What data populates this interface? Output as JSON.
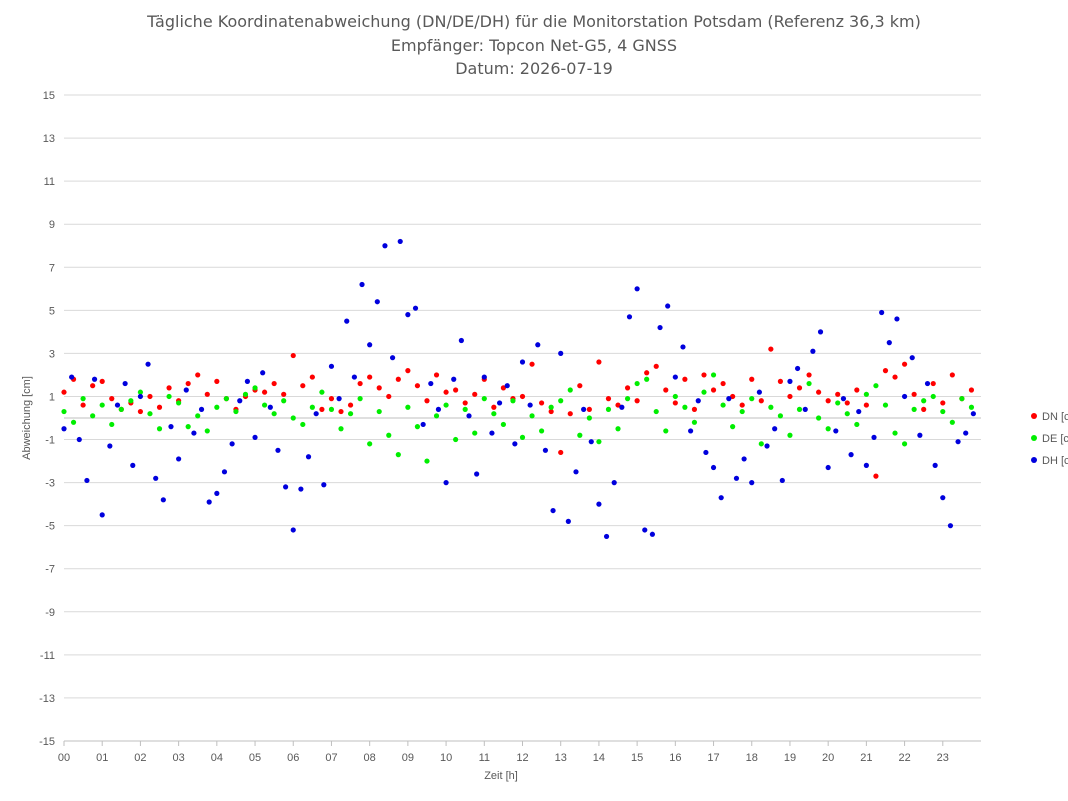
{
  "chart_data": {
    "type": "scatter",
    "title_lines": [
      "Tägliche Koordinatenabweichung (DN/DE/DH) für die Monitorstation Potsdam (Referenz 36,3 km)",
      "Empfänger: Topcon Net-G5, 4 GNSS",
      "Datum: 2026-07-19"
    ],
    "xlabel": "Zeit [h]",
    "ylabel": "Abweichung [cm]",
    "xlim": [
      0,
      24
    ],
    "ylim": [
      -15,
      15
    ],
    "x_tick_labels": [
      "00",
      "01",
      "02",
      "03",
      "04",
      "05",
      "06",
      "07",
      "08",
      "09",
      "10",
      "11",
      "12",
      "13",
      "14",
      "15",
      "16",
      "17",
      "18",
      "19",
      "20",
      "21",
      "22",
      "23"
    ],
    "y_tick_labels": [
      "15",
      "13",
      "11",
      "9",
      "7",
      "5",
      "3",
      "1",
      "-1",
      "-3",
      "-5",
      "-7",
      "-9",
      "-11",
      "-13",
      "-15"
    ],
    "grid": "horizontal",
    "legend_position": "right",
    "series": [
      {
        "name": "DN [cm]",
        "color": "#ff0000",
        "x": [
          0.0,
          0.25,
          0.5,
          0.75,
          1.0,
          1.25,
          1.5,
          1.75,
          2.0,
          2.25,
          2.5,
          2.75,
          3.0,
          3.25,
          3.5,
          3.75,
          4.0,
          4.25,
          4.5,
          4.75,
          5.0,
          5.25,
          5.5,
          5.75,
          6.0,
          6.25,
          6.5,
          6.75,
          7.0,
          7.25,
          7.5,
          7.75,
          8.0,
          8.25,
          8.5,
          8.75,
          9.0,
          9.25,
          9.5,
          9.75,
          10.0,
          10.25,
          10.5,
          10.75,
          11.0,
          11.25,
          11.5,
          11.75,
          12.0,
          12.25,
          12.5,
          12.75,
          13.0,
          13.25,
          13.5,
          13.75,
          14.0,
          14.25,
          14.5,
          14.75,
          15.0,
          15.25,
          15.5,
          15.75,
          16.0,
          16.25,
          16.5,
          16.75,
          17.0,
          17.25,
          17.5,
          17.75,
          18.0,
          18.25,
          18.5,
          18.75,
          19.0,
          19.25,
          19.5,
          19.75,
          20.0,
          20.25,
          20.5,
          20.75,
          21.0,
          21.25,
          21.5,
          21.75,
          22.0,
          22.25,
          22.5,
          22.75,
          23.0,
          23.25,
          23.5,
          23.75
        ],
        "values": [
          1.2,
          1.8,
          0.6,
          1.5,
          1.7,
          0.9,
          0.4,
          0.7,
          0.3,
          1.0,
          0.5,
          1.4,
          0.8,
          1.6,
          2.0,
          1.1,
          1.7,
          0.9,
          0.4,
          1.0,
          1.3,
          1.2,
          1.6,
          1.1,
          2.9,
          1.5,
          1.9,
          0.4,
          0.9,
          0.3,
          0.6,
          1.6,
          1.9,
          1.4,
          1.0,
          1.8,
          2.2,
          1.5,
          0.8,
          2.0,
          1.2,
          1.3,
          0.7,
          1.1,
          1.8,
          0.5,
          1.4,
          0.9,
          1.0,
          2.5,
          0.7,
          0.3,
          -1.6,
          0.2,
          1.5,
          0.4,
          2.6,
          0.9,
          0.6,
          1.4,
          0.8,
          2.1,
          2.4,
          1.3,
          0.7,
          1.8,
          0.4,
          2.0,
          1.3,
          1.6,
          1.0,
          0.6,
          1.8,
          0.8,
          3.2,
          1.7,
          1.0,
          1.4,
          2.0,
          1.2,
          0.8,
          1.1,
          0.7,
          1.3,
          0.6,
          -2.7,
          2.2,
          1.9,
          2.5,
          1.1,
          0.4,
          1.6,
          0.7,
          2.0,
          0.9,
          1.3
        ]
      },
      {
        "name": "DE [cm]",
        "color": "#00ee00",
        "x": [
          0.0,
          0.25,
          0.5,
          0.75,
          1.0,
          1.25,
          1.5,
          1.75,
          2.0,
          2.25,
          2.5,
          2.75,
          3.0,
          3.25,
          3.5,
          3.75,
          4.0,
          4.25,
          4.5,
          4.75,
          5.0,
          5.25,
          5.5,
          5.75,
          6.0,
          6.25,
          6.5,
          6.75,
          7.0,
          7.25,
          7.5,
          7.75,
          8.0,
          8.25,
          8.5,
          8.75,
          9.0,
          9.25,
          9.5,
          9.75,
          10.0,
          10.25,
          10.5,
          10.75,
          11.0,
          11.25,
          11.5,
          11.75,
          12.0,
          12.25,
          12.5,
          12.75,
          13.0,
          13.25,
          13.5,
          13.75,
          14.0,
          14.25,
          14.5,
          14.75,
          15.0,
          15.25,
          15.5,
          15.75,
          16.0,
          16.25,
          16.5,
          16.75,
          17.0,
          17.25,
          17.5,
          17.75,
          18.0,
          18.25,
          18.5,
          18.75,
          19.0,
          19.25,
          19.5,
          19.75,
          20.0,
          20.25,
          20.5,
          20.75,
          21.0,
          21.25,
          21.5,
          21.75,
          22.0,
          22.25,
          22.5,
          22.75,
          23.0,
          23.25,
          23.5,
          23.75
        ],
        "values": [
          0.3,
          -0.2,
          0.9,
          0.1,
          0.6,
          -0.3,
          0.4,
          0.8,
          1.2,
          0.2,
          -0.5,
          1.0,
          0.7,
          -0.4,
          0.1,
          -0.6,
          0.5,
          0.9,
          0.3,
          1.1,
          1.4,
          0.6,
          0.2,
          0.8,
          0.0,
          -0.3,
          0.5,
          1.2,
          0.4,
          -0.5,
          0.2,
          0.9,
          -1.2,
          0.3,
          -0.8,
          -1.7,
          0.5,
          -0.4,
          -2.0,
          0.1,
          0.6,
          -1.0,
          0.4,
          -0.7,
          0.9,
          0.2,
          -0.3,
          0.8,
          -0.9,
          0.1,
          -0.6,
          0.5,
          0.8,
          1.3,
          -0.8,
          0.0,
          -1.1,
          0.4,
          -0.5,
          0.9,
          1.6,
          1.8,
          0.3,
          -0.6,
          1.0,
          0.5,
          -0.2,
          1.2,
          2.0,
          0.6,
          -0.4,
          0.3,
          0.9,
          -1.2,
          0.5,
          0.1,
          -0.8,
          0.4,
          1.6,
          0.0,
          -0.5,
          0.7,
          0.2,
          -0.3,
          1.1,
          1.5,
          0.6,
          -0.7,
          -1.2,
          0.4,
          0.8,
          1.0,
          0.3,
          -0.2,
          0.9,
          0.5
        ]
      },
      {
        "name": "DH [cm]",
        "color": "#0000dd",
        "x": [
          0.0,
          0.2,
          0.4,
          0.6,
          0.8,
          1.0,
          1.2,
          1.4,
          1.6,
          1.8,
          2.0,
          2.2,
          2.4,
          2.6,
          2.8,
          3.0,
          3.2,
          3.4,
          3.6,
          3.8,
          4.0,
          4.2,
          4.4,
          4.6,
          4.8,
          5.0,
          5.2,
          5.4,
          5.6,
          5.8,
          6.0,
          6.2,
          6.4,
          6.6,
          6.8,
          7.0,
          7.2,
          7.4,
          7.6,
          7.8,
          8.0,
          8.2,
          8.4,
          8.6,
          8.8,
          9.0,
          9.2,
          9.4,
          9.6,
          9.8,
          10.0,
          10.2,
          10.4,
          10.6,
          10.8,
          11.0,
          11.2,
          11.4,
          11.6,
          11.8,
          12.0,
          12.2,
          12.4,
          12.6,
          12.8,
          13.0,
          13.2,
          13.4,
          13.6,
          13.8,
          14.0,
          14.2,
          14.4,
          14.6,
          14.8,
          15.0,
          15.2,
          15.4,
          15.6,
          15.8,
          16.0,
          16.2,
          16.4,
          16.6,
          16.8,
          17.0,
          17.2,
          17.4,
          17.6,
          17.8,
          18.0,
          18.2,
          18.4,
          18.6,
          18.8,
          19.0,
          19.2,
          19.4,
          19.6,
          19.8,
          20.0,
          20.2,
          20.4,
          20.6,
          20.8,
          21.0,
          21.2,
          21.4,
          21.6,
          21.8,
          22.0,
          22.2,
          22.4,
          22.6,
          22.8,
          23.0,
          23.2,
          23.4,
          23.6,
          23.8
        ],
        "values": [
          -0.5,
          1.9,
          -1.0,
          -2.9,
          1.8,
          -4.5,
          -1.3,
          0.6,
          1.6,
          -2.2,
          1.0,
          2.5,
          -2.8,
          -3.8,
          -0.4,
          -1.9,
          1.3,
          -0.7,
          0.4,
          -3.9,
          -3.5,
          -2.5,
          -1.2,
          0.8,
          1.7,
          -0.9,
          2.1,
          0.5,
          -1.5,
          -3.2,
          -5.2,
          -3.3,
          -1.8,
          0.2,
          -3.1,
          2.4,
          0.9,
          4.5,
          1.9,
          6.2,
          3.4,
          5.4,
          8.0,
          2.8,
          8.2,
          4.8,
          5.1,
          -0.3,
          1.6,
          0.4,
          -3.0,
          1.8,
          3.6,
          0.1,
          -2.6,
          1.9,
          -0.7,
          0.7,
          1.5,
          -1.2,
          2.6,
          0.6,
          3.4,
          -1.5,
          -4.3,
          3.0,
          -4.8,
          -2.5,
          0.4,
          -1.1,
          -4.0,
          -5.5,
          -3.0,
          0.5,
          4.7,
          6.0,
          -5.2,
          -5.4,
          4.2,
          5.2,
          1.9,
          3.3,
          -0.6,
          0.8,
          -1.6,
          -2.3,
          -3.7,
          0.9,
          -2.8,
          -1.9,
          -3.0,
          1.2,
          -1.3,
          -0.5,
          -2.9,
          1.7,
          2.3,
          0.4,
          3.1,
          4.0,
          -2.3,
          -0.6,
          0.9,
          -1.7,
          0.3,
          -2.2,
          -0.9,
          4.9,
          3.5,
          4.6,
          1.0,
          2.8,
          -0.8,
          1.6,
          -2.2,
          -3.7,
          -5.0,
          -1.1,
          -0.7,
          0.2
        ]
      }
    ]
  }
}
